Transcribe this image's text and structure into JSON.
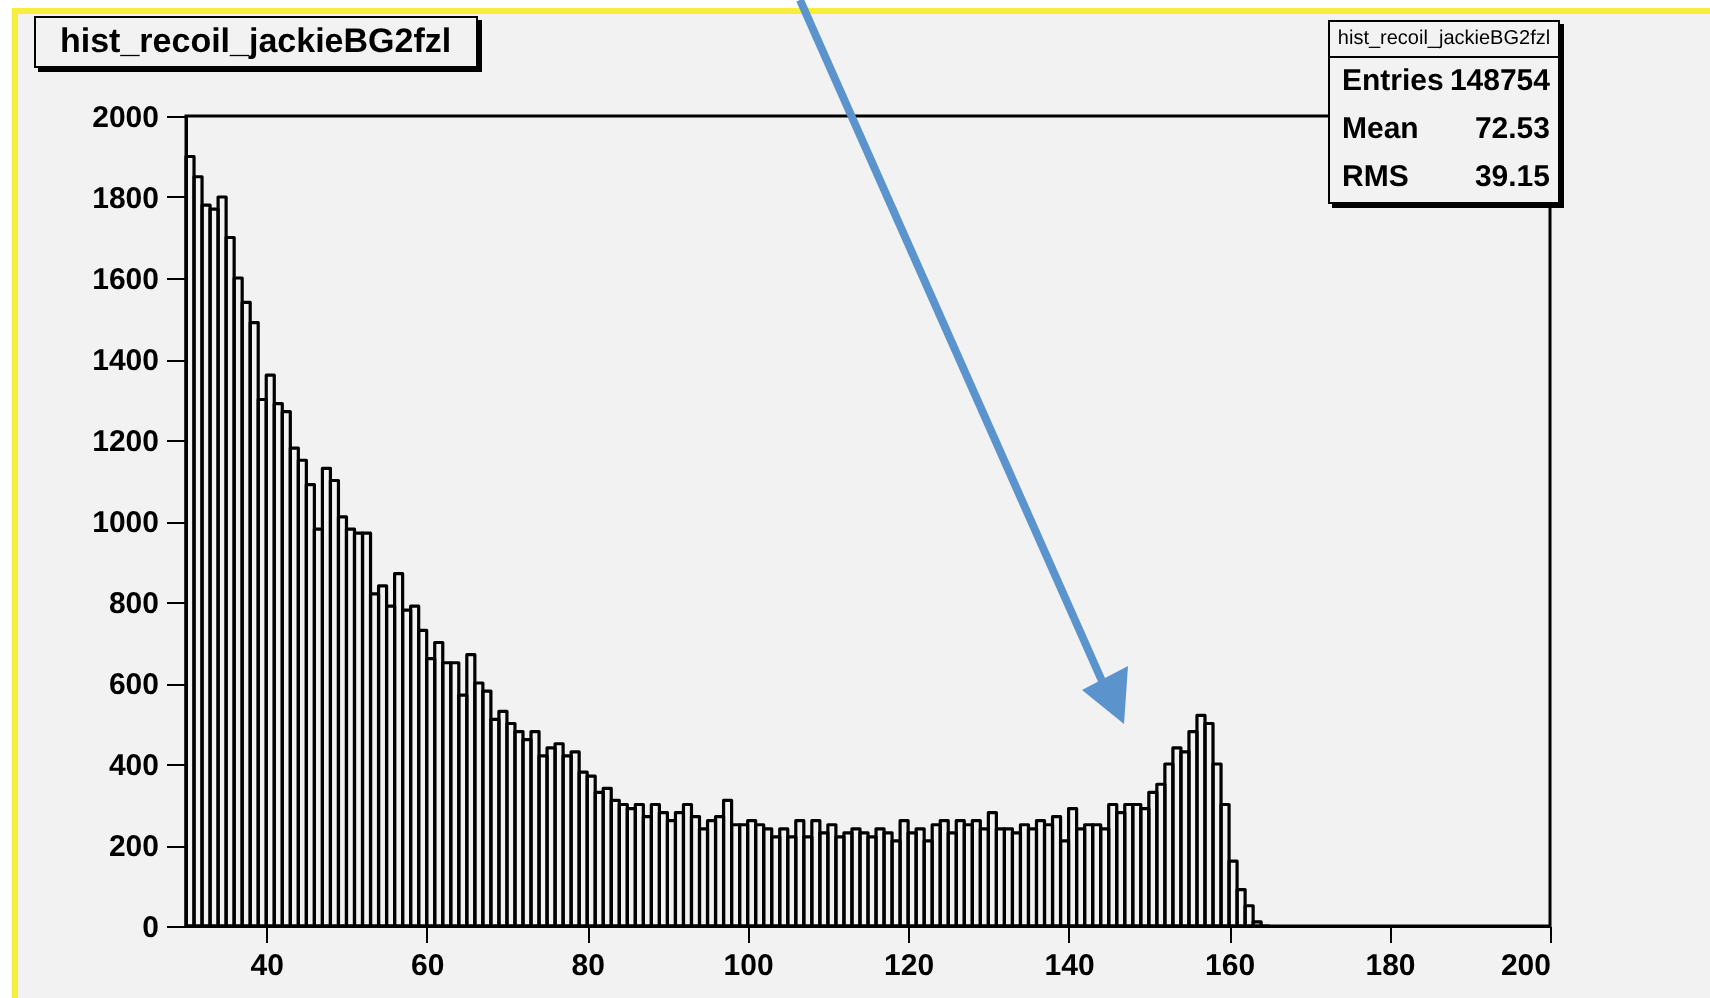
{
  "chart_data": {
    "type": "histogram",
    "title": "hist_recoil_jackieBG2fzl",
    "bins": [
      30,
      31,
      32,
      33,
      34,
      35,
      36,
      37,
      38,
      39,
      40,
      41,
      42,
      43,
      44,
      45,
      46,
      47,
      48,
      49,
      50,
      51,
      52,
      53,
      54,
      55,
      56,
      57,
      58,
      59,
      60,
      61,
      62,
      63,
      64,
      65,
      66,
      67,
      68,
      69,
      70,
      71,
      72,
      73,
      74,
      75,
      76,
      77,
      78,
      79,
      80,
      81,
      82,
      83,
      84,
      85,
      86,
      87,
      88,
      89,
      90,
      91,
      92,
      93,
      94,
      95,
      96,
      97,
      98,
      99,
      100,
      101,
      102,
      103,
      104,
      105,
      106,
      107,
      108,
      109,
      110,
      111,
      112,
      113,
      114,
      115,
      116,
      117,
      118,
      119,
      120,
      121,
      122,
      123,
      124,
      125,
      126,
      127,
      128,
      129,
      130,
      131,
      132,
      133,
      134,
      135,
      136,
      137,
      138,
      139,
      140,
      141,
      142,
      143,
      144,
      145,
      146,
      147,
      148,
      149,
      150,
      151,
      152,
      153,
      154,
      155,
      156,
      157,
      158,
      159,
      160,
      161,
      162,
      163,
      164,
      165
    ],
    "values": [
      1900,
      1850,
      1780,
      1770,
      1800,
      1700,
      1600,
      1540,
      1490,
      1300,
      1360,
      1290,
      1270,
      1180,
      1150,
      1090,
      980,
      1130,
      1100,
      1010,
      980,
      970,
      970,
      820,
      840,
      790,
      870,
      780,
      790,
      730,
      660,
      700,
      650,
      650,
      570,
      670,
      600,
      580,
      510,
      530,
      500,
      480,
      460,
      480,
      420,
      440,
      450,
      420,
      430,
      380,
      370,
      330,
      340,
      310,
      300,
      290,
      300,
      270,
      300,
      280,
      260,
      280,
      300,
      270,
      240,
      260,
      270,
      310,
      250,
      250,
      260,
      250,
      240,
      220,
      240,
      220,
      260,
      220,
      260,
      230,
      250,
      220,
      230,
      240,
      230,
      220,
      240,
      230,
      210,
      260,
      230,
      240,
      210,
      250,
      260,
      230,
      260,
      250,
      260,
      240,
      280,
      240,
      240,
      230,
      250,
      240,
      260,
      250,
      270,
      210,
      290,
      240,
      250,
      250,
      240,
      300,
      280,
      300,
      300,
      290,
      330,
      350,
      400,
      440,
      430,
      480,
      520,
      500,
      400,
      300,
      160,
      90,
      50,
      10,
      0
    ],
    "color": "#000000",
    "xlim": [
      30,
      200
    ],
    "xticks": [
      40,
      60,
      80,
      100,
      120,
      140,
      160,
      180,
      200
    ],
    "ylim": [
      0,
      2000
    ],
    "yticks": [
      0,
      200,
      400,
      600,
      800,
      1000,
      1200,
      1400,
      1600,
      1800,
      2000
    ],
    "grid": false,
    "annotations": [
      "hist_recoil_jackieBG2fzl",
      "Entries",
      "148754",
      "Mean",
      "72.53",
      "RMS",
      "39.15"
    ]
  }
}
